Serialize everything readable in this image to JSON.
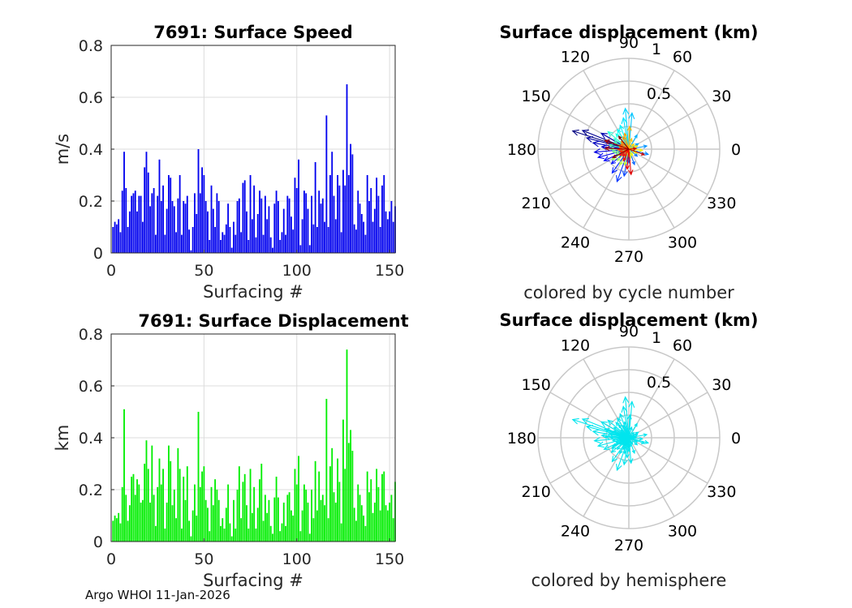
{
  "footer": "Argo WHOI 11-Jan-2026",
  "colors": {
    "speed_bar": "#0000ee",
    "disp_bar": "#00ee00",
    "hemisphere": "#00e5ee",
    "grid": "#dcdcdc",
    "polar_grid": "#c8c8c8"
  },
  "chart_data": [
    {
      "id": "speed",
      "type": "bar",
      "title": "7691: Surface Speed",
      "xlabel": "Surfacing #",
      "ylabel": "m/s",
      "xlim": [
        0,
        153
      ],
      "ylim": [
        0,
        0.8
      ],
      "xticks": [
        "0",
        "50",
        "100",
        "150"
      ],
      "yticks": [
        "0",
        "0.2",
        "0.4",
        "0.6",
        "0.8"
      ],
      "x_start": 1,
      "values": [
        0.1,
        0.12,
        0.11,
        0.13,
        0.08,
        0.24,
        0.39,
        0.25,
        0.1,
        0.16,
        0.22,
        0.23,
        0.24,
        0.16,
        0.22,
        0.22,
        0.12,
        0.33,
        0.39,
        0.31,
        0.18,
        0.23,
        0.25,
        0.07,
        0.22,
        0.36,
        0.2,
        0.26,
        0.07,
        0.17,
        0.3,
        0.29,
        0.2,
        0.18,
        0.08,
        0.21,
        0.3,
        0.07,
        0.2,
        0.19,
        0.22,
        0.09,
        0.01,
        0.1,
        0.23,
        0.15,
        0.4,
        0.23,
        0.33,
        0.3,
        0.2,
        0.16,
        0.05,
        0.26,
        0.17,
        0.1,
        0.23,
        0.2,
        0.05,
        0.08,
        0.07,
        0.11,
        0.19,
        0.1,
        0.02,
        0.12,
        0.07,
        0.2,
        0.21,
        0.08,
        0.27,
        0.28,
        0.16,
        0.05,
        0.3,
        0.13,
        0.26,
        0.06,
        0.15,
        0.24,
        0.21,
        0.07,
        0.22,
        0.13,
        0.18,
        0.06,
        0.02,
        0.19,
        0.24,
        0.2,
        0.05,
        0.08,
        0.17,
        0.07,
        0.22,
        0.21,
        0.14,
        0.09,
        0.29,
        0.25,
        0.36,
        0.03,
        0.13,
        0.24,
        0.23,
        0.17,
        0.03,
        0.22,
        0.11,
        0.35,
        0.1,
        0.24,
        0.19,
        0.21,
        0.12,
        0.53,
        0.1,
        0.3,
        0.39,
        0.22,
        0.13,
        0.3,
        0.26,
        0.08,
        0.32,
        0.26,
        0.65,
        0.3,
        0.42,
        0.38,
        0.11,
        0.09,
        0.24,
        0.19,
        0.15,
        0.12,
        0.07,
        0.3,
        0.2,
        0.25,
        0.12,
        0.17,
        0.29,
        0.22,
        0.1,
        0.26,
        0.3,
        0.16,
        0.13,
        0.16,
        0.2,
        0.12,
        0.18
      ]
    },
    {
      "id": "displacement",
      "type": "bar",
      "title": "7691: Surface Displacement",
      "xlabel": "Surfacing #",
      "ylabel": "km",
      "xlim": [
        0,
        153
      ],
      "ylim": [
        0,
        0.8
      ],
      "xticks": [
        "0",
        "50",
        "100",
        "150"
      ],
      "yticks": [
        "0",
        "0.2",
        "0.4",
        "0.6",
        "0.8"
      ],
      "x_start": 1,
      "values": [
        0.08,
        0.1,
        0.09,
        0.11,
        0.07,
        0.21,
        0.51,
        0.18,
        0.08,
        0.14,
        0.25,
        0.26,
        0.18,
        0.24,
        0.22,
        0.15,
        0.16,
        0.3,
        0.39,
        0.28,
        0.15,
        0.37,
        0.18,
        0.06,
        0.21,
        0.32,
        0.22,
        0.28,
        0.05,
        0.15,
        0.37,
        0.31,
        0.14,
        0.2,
        0.09,
        0.36,
        0.28,
        0.05,
        0.25,
        0.16,
        0.29,
        0.08,
        0.02,
        0.12,
        0.22,
        0.1,
        0.5,
        0.21,
        0.27,
        0.29,
        0.16,
        0.13,
        0.04,
        0.21,
        0.14,
        0.24,
        0.2,
        0.16,
        0.06,
        0.09,
        0.05,
        0.13,
        0.22,
        0.07,
        0.02,
        0.16,
        0.05,
        0.2,
        0.29,
        0.09,
        0.23,
        0.26,
        0.14,
        0.05,
        0.28,
        0.11,
        0.21,
        0.05,
        0.13,
        0.24,
        0.3,
        0.08,
        0.18,
        0.11,
        0.16,
        0.06,
        0.03,
        0.17,
        0.25,
        0.17,
        0.04,
        0.07,
        0.15,
        0.06,
        0.18,
        0.19,
        0.12,
        0.1,
        0.28,
        0.22,
        0.33,
        0.04,
        0.12,
        0.22,
        0.2,
        0.15,
        0.03,
        0.2,
        0.09,
        0.31,
        0.12,
        0.27,
        0.16,
        0.18,
        0.14,
        0.55,
        0.09,
        0.29,
        0.36,
        0.19,
        0.15,
        0.32,
        0.23,
        0.07,
        0.47,
        0.28,
        0.74,
        0.38,
        0.43,
        0.35,
        0.13,
        0.08,
        0.22,
        0.18,
        0.14,
        0.1,
        0.06,
        0.27,
        0.19,
        0.24,
        0.11,
        0.15,
        0.28,
        0.21,
        0.12,
        0.26,
        0.27,
        0.14,
        0.12,
        0.15,
        0.18,
        0.09,
        0.23
      ]
    },
    {
      "id": "polar_cycle",
      "type": "polar_quiver",
      "title": "Surface displacement (km)",
      "caption": "colored by cycle number",
      "rlim": [
        0,
        1
      ],
      "rtick_labels": [
        "0.5",
        "1"
      ],
      "angle_labels": [
        "0",
        "30",
        "60",
        "90",
        "120",
        "150",
        "180",
        "210",
        "240",
        "270",
        "300",
        "330"
      ],
      "colormap": "jet",
      "vectors": [
        {
          "angle": 162,
          "r": 0.65
        },
        {
          "angle": 158,
          "r": 0.55
        },
        {
          "angle": 165,
          "r": 0.48
        },
        {
          "angle": 150,
          "r": 0.35
        },
        {
          "angle": 170,
          "r": 0.4
        },
        {
          "angle": 175,
          "r": 0.3
        },
        {
          "angle": 185,
          "r": 0.38
        },
        {
          "angle": 195,
          "r": 0.35
        },
        {
          "angle": 205,
          "r": 0.3
        },
        {
          "angle": 220,
          "r": 0.25
        },
        {
          "angle": 235,
          "r": 0.32
        },
        {
          "angle": 250,
          "r": 0.38
        },
        {
          "angle": 260,
          "r": 0.3
        },
        {
          "angle": 270,
          "r": 0.15
        },
        {
          "angle": 290,
          "r": 0.18
        },
        {
          "angle": 320,
          "r": 0.12
        },
        {
          "angle": 345,
          "r": 0.22
        },
        {
          "angle": 10,
          "r": 0.2
        },
        {
          "angle": 30,
          "r": 0.12
        },
        {
          "angle": 60,
          "r": 0.18
        },
        {
          "angle": 85,
          "r": 0.4
        },
        {
          "angle": 95,
          "r": 0.45
        },
        {
          "angle": 100,
          "r": 0.35
        },
        {
          "angle": 110,
          "r": 0.28
        },
        {
          "angle": 120,
          "r": 0.25
        },
        {
          "angle": 130,
          "r": 0.22
        },
        {
          "angle": 140,
          "r": 0.3
        },
        {
          "angle": 145,
          "r": 0.2
        },
        {
          "angle": 155,
          "r": 0.18
        },
        {
          "angle": 168,
          "r": 0.22
        },
        {
          "angle": 180,
          "r": 0.2
        },
        {
          "angle": 190,
          "r": 0.18
        },
        {
          "angle": 200,
          "r": 0.15
        },
        {
          "angle": 212,
          "r": 0.22
        },
        {
          "angle": 225,
          "r": 0.18
        },
        {
          "angle": 240,
          "r": 0.2
        },
        {
          "angle": 255,
          "r": 0.18
        },
        {
          "angle": 280,
          "r": 0.1
        },
        {
          "angle": 300,
          "r": 0.08
        },
        {
          "angle": 335,
          "r": 0.1
        },
        {
          "angle": 355,
          "r": 0.15
        },
        {
          "angle": 20,
          "r": 0.1
        },
        {
          "angle": 45,
          "r": 0.08
        },
        {
          "angle": 75,
          "r": 0.12
        },
        {
          "angle": 88,
          "r": 0.25
        },
        {
          "angle": 105,
          "r": 0.18
        },
        {
          "angle": 115,
          "r": 0.15
        },
        {
          "angle": 135,
          "r": 0.12
        },
        {
          "angle": 148,
          "r": 0.1
        },
        {
          "angle": 160,
          "r": 0.12
        },
        {
          "angle": 172,
          "r": 0.1
        },
        {
          "angle": 183,
          "r": 0.12
        },
        {
          "angle": 198,
          "r": 0.1
        },
        {
          "angle": 215,
          "r": 0.12
        },
        {
          "angle": 230,
          "r": 0.1
        },
        {
          "angle": 245,
          "r": 0.14
        },
        {
          "angle": 265,
          "r": 0.22
        },
        {
          "angle": 275,
          "r": 0.28
        },
        {
          "angle": 5,
          "r": 0.08
        },
        {
          "angle": 340,
          "r": 0.18
        },
        {
          "angle": 160,
          "r": 0.28
        },
        {
          "angle": 178,
          "r": 0.26
        },
        {
          "angle": 208,
          "r": 0.2
        },
        {
          "angle": 128,
          "r": 0.18
        }
      ]
    },
    {
      "id": "polar_hemisphere",
      "type": "polar_quiver",
      "title": "Surface displacement (km)",
      "caption": "colored by hemisphere",
      "rlim": [
        0,
        1
      ],
      "rtick_labels": [
        "0.5",
        "1"
      ],
      "angle_labels": [
        "0",
        "30",
        "60",
        "90",
        "120",
        "150",
        "180",
        "210",
        "240",
        "270",
        "300",
        "330"
      ],
      "colormap": "single",
      "vectors_ref": "polar_cycle"
    }
  ]
}
